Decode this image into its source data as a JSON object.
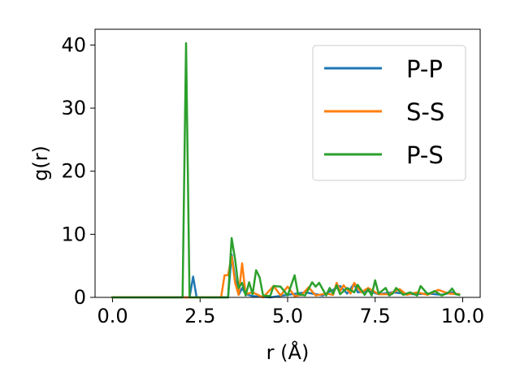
{
  "chart_data": {
    "type": "line",
    "xlabel": "r (Å)",
    "ylabel": "g(r)",
    "xlim": [
      -0.5,
      10.5
    ],
    "ylim": [
      0,
      42.5
    ],
    "xticks": [
      0.0,
      2.5,
      5.0,
      7.5,
      10.0
    ],
    "xtick_labels": [
      "0.0",
      "2.5",
      "5.0",
      "7.5",
      "10.0"
    ],
    "yticks": [
      0,
      10,
      20,
      30,
      40
    ],
    "ytick_labels": [
      "0",
      "10",
      "20",
      "30",
      "40"
    ],
    "grid": false,
    "legend_position": "top-right",
    "series": [
      {
        "name": "P-P",
        "color": "#1f77b4",
        "points": [
          [
            0,
            0
          ],
          [
            2.2,
            0
          ],
          [
            2.3,
            3.3
          ],
          [
            2.4,
            0
          ],
          [
            3.3,
            0
          ],
          [
            3.4,
            6.8
          ],
          [
            3.5,
            3.0
          ],
          [
            3.6,
            0.4
          ],
          [
            3.7,
            1.5
          ],
          [
            3.8,
            0.5
          ],
          [
            4.0,
            0.2
          ],
          [
            4.5,
            0
          ],
          [
            5.0,
            0.4
          ],
          [
            5.5,
            0.8
          ],
          [
            5.8,
            0.5
          ],
          [
            6.0,
            0.3
          ],
          [
            6.5,
            1.8
          ],
          [
            6.7,
            0.6
          ],
          [
            6.9,
            2.2
          ],
          [
            7.0,
            0.8
          ],
          [
            7.3,
            1.0
          ],
          [
            7.6,
            0.5
          ],
          [
            8.0,
            0.8
          ],
          [
            8.3,
            0.6
          ],
          [
            8.6,
            0.5
          ],
          [
            9.0,
            0.6
          ],
          [
            9.4,
            0.4
          ],
          [
            9.7,
            0.8
          ],
          [
            9.9,
            0.4
          ]
        ]
      },
      {
        "name": "S-S",
        "color": "#ff7f0e",
        "points": [
          [
            0,
            0
          ],
          [
            3.1,
            0
          ],
          [
            3.2,
            3.5
          ],
          [
            3.3,
            3.5
          ],
          [
            3.4,
            6.5
          ],
          [
            3.5,
            2.3
          ],
          [
            3.6,
            0.4
          ],
          [
            3.7,
            5.4
          ],
          [
            3.8,
            0.5
          ],
          [
            4.0,
            0.8
          ],
          [
            4.3,
            0
          ],
          [
            4.6,
            1.8
          ],
          [
            4.8,
            0.3
          ],
          [
            5.0,
            1.7
          ],
          [
            5.2,
            0.2
          ],
          [
            5.4,
            0.4
          ],
          [
            5.6,
            1.6
          ],
          [
            5.8,
            0.3
          ],
          [
            6.1,
            0.6
          ],
          [
            6.3,
            0.4
          ],
          [
            6.4,
            2.3
          ],
          [
            6.5,
            1.0
          ],
          [
            6.6,
            1.9
          ],
          [
            6.8,
            0.6
          ],
          [
            6.9,
            2.3
          ],
          [
            7.1,
            0.8
          ],
          [
            7.3,
            1.5
          ],
          [
            7.6,
            0.5
          ],
          [
            7.9,
            0.5
          ],
          [
            8.2,
            1.3
          ],
          [
            8.4,
            0.4
          ],
          [
            8.7,
            0.8
          ],
          [
            9.0,
            0.4
          ],
          [
            9.3,
            1.2
          ],
          [
            9.6,
            0.6
          ],
          [
            9.9,
            0.5
          ]
        ]
      },
      {
        "name": "P-S",
        "color": "#2ca02c",
        "points": [
          [
            0,
            0
          ],
          [
            2.0,
            0
          ],
          [
            2.1,
            40.3
          ],
          [
            2.2,
            0
          ],
          [
            3.3,
            0
          ],
          [
            3.4,
            9.4
          ],
          [
            3.5,
            6.0
          ],
          [
            3.6,
            1.5
          ],
          [
            3.7,
            2.3
          ],
          [
            3.8,
            0.3
          ],
          [
            3.9,
            2.4
          ],
          [
            4.0,
            0.5
          ],
          [
            4.1,
            4.3
          ],
          [
            4.2,
            3.2
          ],
          [
            4.3,
            0.3
          ],
          [
            4.5,
            0.2
          ],
          [
            4.6,
            1.8
          ],
          [
            4.8,
            1.7
          ],
          [
            5.0,
            0.3
          ],
          [
            5.2,
            3.5
          ],
          [
            5.3,
            0.5
          ],
          [
            5.5,
            0.3
          ],
          [
            5.7,
            2.4
          ],
          [
            5.8,
            1.7
          ],
          [
            5.9,
            2.3
          ],
          [
            6.1,
            0.3
          ],
          [
            6.2,
            1.5
          ],
          [
            6.3,
            0.6
          ],
          [
            6.4,
            1.9
          ],
          [
            6.5,
            0.5
          ],
          [
            6.7,
            1.5
          ],
          [
            6.9,
            0.8
          ],
          [
            7.0,
            2.0
          ],
          [
            7.2,
            0.4
          ],
          [
            7.3,
            1.3
          ],
          [
            7.4,
            0.3
          ],
          [
            7.5,
            2.7
          ],
          [
            7.6,
            0.6
          ],
          [
            7.8,
            1.5
          ],
          [
            7.9,
            0.3
          ],
          [
            8.0,
            0.6
          ],
          [
            8.1,
            1.5
          ],
          [
            8.3,
            0.4
          ],
          [
            8.5,
            0.8
          ],
          [
            8.7,
            0.3
          ],
          [
            8.8,
            1.8
          ],
          [
            9.0,
            0.5
          ],
          [
            9.2,
            1.0
          ],
          [
            9.4,
            0.3
          ],
          [
            9.6,
            0.8
          ],
          [
            9.7,
            1.4
          ],
          [
            9.8,
            0.5
          ],
          [
            9.9,
            0.4
          ]
        ]
      }
    ]
  }
}
